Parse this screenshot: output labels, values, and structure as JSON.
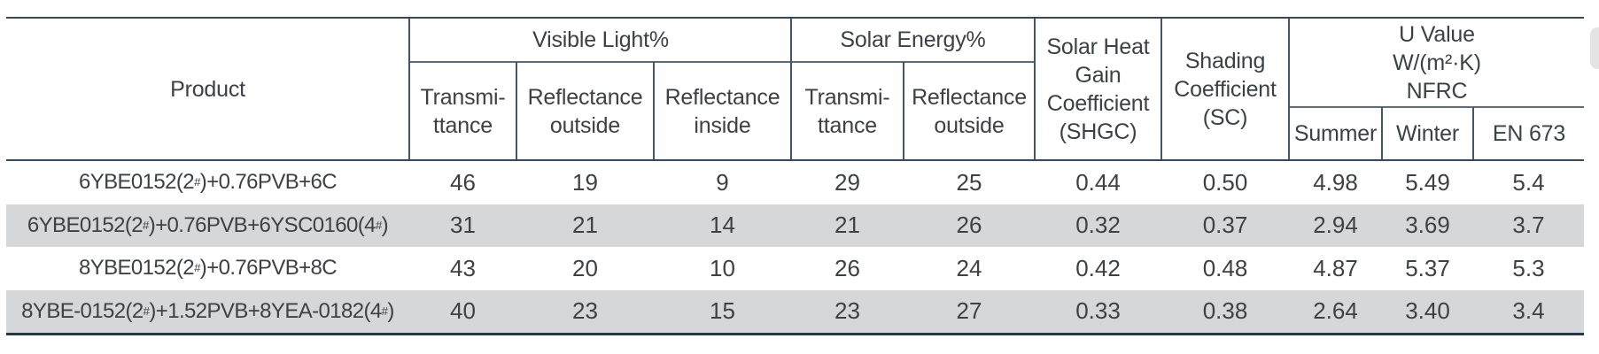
{
  "colors": {
    "grid_line": "#35495a",
    "bottom_line": "#24384c",
    "row_band": "#d6d7d9",
    "text": "#3c4146"
  },
  "table": {
    "header": {
      "product_label": "Product",
      "groups": {
        "visible_light": {
          "label": "Visible Light%",
          "cols": [
            "Transmi-\nttance",
            "Reflectance\noutside",
            "Reflectance\ninside"
          ]
        },
        "solar_energy": {
          "label": "Solar Energy%",
          "cols": [
            "Transmi-\nttance",
            "Reflectance\noutside"
          ]
        },
        "shgc": {
          "label": "Solar Heat\nGain\nCoefficient\n(SHGC)"
        },
        "sc": {
          "label": "Shading\nCoefficient\n(SC)"
        },
        "u_value": {
          "label": "U Value\nW/(m²·K)\nNFRC",
          "cols": [
            "Summer",
            "Winter",
            "EN 673"
          ]
        }
      }
    },
    "rows": [
      {
        "product": "6YBE0152(2#)+0.76PVB+6C",
        "values": [
          "46",
          "19",
          "9",
          "29",
          "25",
          "0.44",
          "0.50",
          "4.98",
          "5.49",
          "5.4"
        ]
      },
      {
        "product": "6YBE0152(2#)+0.76PVB+6YSC0160(4#)",
        "values": [
          "31",
          "21",
          "14",
          "21",
          "26",
          "0.32",
          "0.37",
          "2.94",
          "3.69",
          "3.7"
        ]
      },
      {
        "product": "8YBE0152(2#)+0.76PVB+8C",
        "values": [
          "43",
          "20",
          "10",
          "26",
          "24",
          "0.42",
          "0.48",
          "4.87",
          "5.37",
          "5.3"
        ]
      },
      {
        "product": "8YBE-0152(2#)+1.52PVB+8YEA-0182(4#)",
        "values": [
          "40",
          "23",
          "15",
          "23",
          "27",
          "0.33",
          "0.38",
          "2.64",
          "3.40",
          "3.4"
        ]
      }
    ]
  }
}
